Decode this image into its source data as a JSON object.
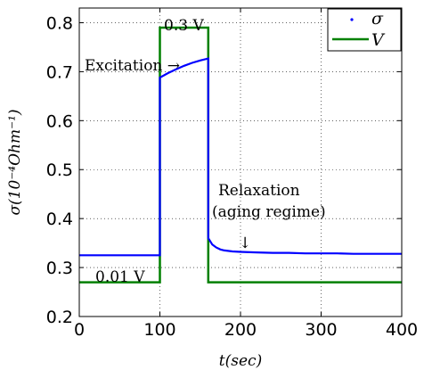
{
  "chart_data": {
    "type": "line",
    "xlabel": "t(sec)",
    "ylabel": "σ(10⁻⁴Ohm⁻¹)",
    "xlim": [
      0,
      400
    ],
    "ylim": [
      0.2,
      0.83
    ],
    "xticks": [
      "0",
      "100",
      "200",
      "300",
      "400"
    ],
    "yticks": [
      "0.2",
      "0.3",
      "0.4",
      "0.5",
      "0.6",
      "0.7",
      "0.8"
    ],
    "grid": true,
    "legend_position": "top-right",
    "series": [
      {
        "name": "σ",
        "color": "#0000ff",
        "x": [
          0,
          100,
          100,
          110,
          120,
          130,
          140,
          150,
          160,
          160,
          165,
          170,
          175,
          180,
          190,
          200,
          220,
          240,
          260,
          280,
          300,
          320,
          340,
          360,
          380,
          400
        ],
        "y": [
          0.325,
          0.325,
          0.688,
          0.697,
          0.705,
          0.712,
          0.718,
          0.723,
          0.727,
          0.36,
          0.347,
          0.341,
          0.337,
          0.335,
          0.333,
          0.332,
          0.331,
          0.33,
          0.33,
          0.329,
          0.329,
          0.329,
          0.328,
          0.328,
          0.328,
          0.328
        ]
      },
      {
        "name": "V",
        "color": "#008000",
        "x": [
          0,
          100,
          100,
          160,
          160,
          400
        ],
        "y": [
          0.27,
          0.27,
          0.79,
          0.79,
          0.27,
          0.27
        ]
      }
    ],
    "annotations": [
      {
        "text": "0.3 V"
      },
      {
        "text": "Excitation →"
      },
      {
        "text": "Relaxation"
      },
      {
        "text": "(aging regime)"
      },
      {
        "text": "↓"
      },
      {
        "text": "0.01 V"
      }
    ]
  }
}
